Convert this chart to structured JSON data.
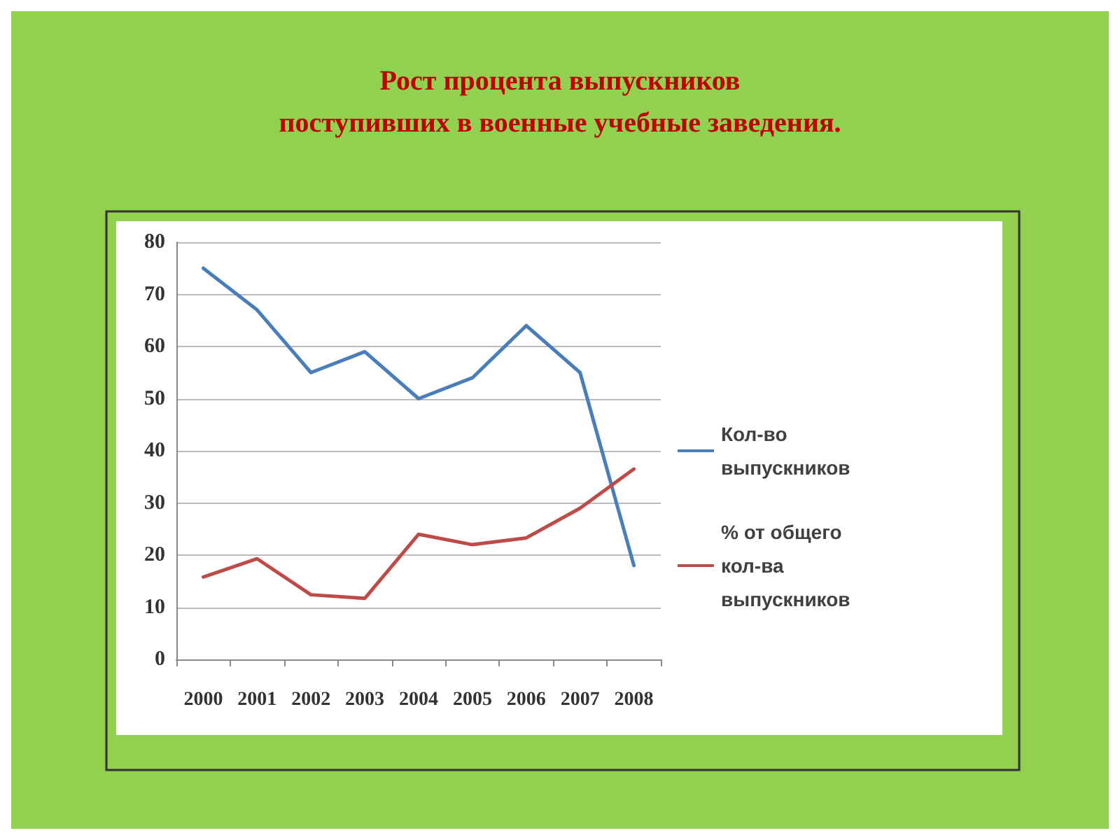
{
  "chart_data": {
    "type": "line",
    "title": "Рост процента выпускников\nпоступивших в военные учебные заведения.",
    "categories": [
      "2000",
      "2001",
      "2002",
      "2003",
      "2004",
      "2005",
      "2006",
      "2007",
      "2008"
    ],
    "series": [
      {
        "name": "Кол-во выпускников",
        "color": "#4a7ebb",
        "values": [
          75,
          67,
          55,
          59,
          50,
          54,
          64,
          55,
          18
        ]
      },
      {
        "name": "% от общего кол-ва выпускников",
        "color": "#be4b48",
        "values": [
          15.8,
          19.3,
          12.4,
          11.7,
          24,
          22,
          23.3,
          29,
          36.5
        ]
      }
    ],
    "ylim": [
      0,
      80
    ],
    "yticks": [
      0,
      10,
      20,
      30,
      40,
      50,
      60,
      70,
      80
    ],
    "grid": "y",
    "legend": "right",
    "marker": "none",
    "line_style": "solid"
  }
}
